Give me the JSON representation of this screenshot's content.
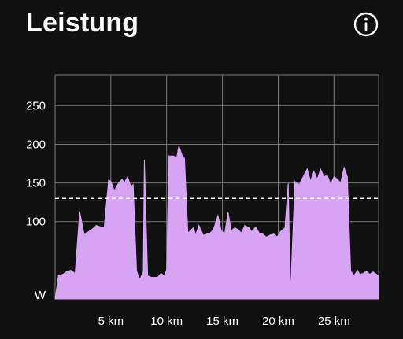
{
  "header": {
    "title": "Leistung",
    "info_icon": "info-circle-icon"
  },
  "colors": {
    "background": "#111111",
    "area_fill": "#d7a4f4",
    "grid": "#777777",
    "reference_line": "#ffffff"
  },
  "chart_data": {
    "type": "area",
    "title": "",
    "xlabel": "",
    "ylabel": "W",
    "x_unit": "km",
    "xlim": [
      0,
      29
    ],
    "ylim": [
      0,
      290
    ],
    "grid": true,
    "x_ticks": [
      {
        "value": 5,
        "label": "5 km"
      },
      {
        "value": 10,
        "label": "10 km"
      },
      {
        "value": 15,
        "label": "15 km"
      },
      {
        "value": 20,
        "label": "20 km"
      },
      {
        "value": 25,
        "label": "25 km"
      }
    ],
    "y_ticks": [
      {
        "value": 0,
        "label": "W"
      },
      {
        "value": 100,
        "label": "100"
      },
      {
        "value": 150,
        "label": "150"
      },
      {
        "value": 200,
        "label": "200"
      },
      {
        "value": 250,
        "label": "250"
      }
    ],
    "reference_line": {
      "value": 130,
      "style": "dashed"
    },
    "series": [
      {
        "x": [
          0.0,
          0.3,
          0.7,
          1.0,
          1.4,
          1.8,
          2.2,
          2.6,
          3.0,
          3.3,
          3.7,
          4.1,
          4.4,
          4.8,
          5.0,
          5.3,
          5.7,
          6.0,
          6.2,
          6.5,
          6.8,
          7.0,
          7.3,
          7.6,
          7.9,
          8.0,
          8.3,
          8.6,
          8.9,
          9.2,
          9.5,
          9.8,
          10.0,
          10.2,
          10.6,
          10.9,
          11.1,
          11.4,
          11.6,
          11.9,
          12.1,
          12.4,
          12.6,
          12.9,
          13.3,
          13.6,
          13.9,
          14.2,
          14.6,
          14.9,
          15.2,
          15.5,
          15.8,
          16.1,
          16.4,
          16.7,
          17.0,
          17.4,
          17.6,
          18.0,
          18.3,
          18.6,
          18.9,
          19.2,
          19.6,
          19.9,
          20.2,
          20.6,
          20.9,
          21.1,
          21.5,
          21.6,
          21.9,
          22.3,
          22.6,
          22.9,
          23.2,
          23.5,
          23.8,
          24.1,
          24.4,
          24.7,
          25.0,
          25.3,
          25.6,
          25.9,
          26.2,
          26.5,
          26.8,
          27.1,
          27.3,
          27.6,
          27.9,
          28.2,
          28.5,
          28.7,
          29.0
        ],
        "y": [
          0,
          30,
          32,
          35,
          37,
          33,
          113,
          84,
          87,
          90,
          95,
          93,
          93,
          154,
          152,
          140,
          150,
          155,
          150,
          158,
          145,
          148,
          36,
          25,
          35,
          180,
          30,
          28,
          28,
          28,
          33,
          30,
          38,
          185,
          185,
          183,
          198,
          185,
          182,
          85,
          88,
          92,
          83,
          95,
          82,
          85,
          85,
          90,
          108,
          88,
          84,
          112,
          88,
          92,
          90,
          85,
          95,
          92,
          87,
          93,
          85,
          85,
          80,
          82,
          85,
          80,
          87,
          92,
          150,
          5,
          152,
          150,
          148,
          160,
          168,
          152,
          165,
          155,
          168,
          158,
          160,
          148,
          158,
          155,
          150,
          170,
          158,
          36,
          30,
          37,
          32,
          33,
          36,
          32,
          35,
          33,
          30
        ]
      }
    ]
  }
}
